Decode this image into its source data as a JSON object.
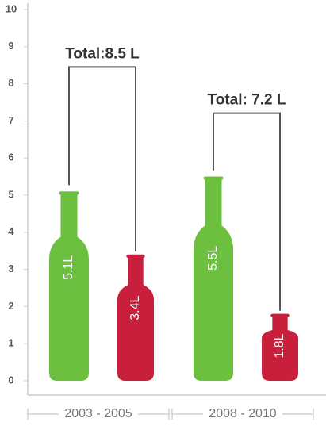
{
  "chart_data": {
    "type": "bar",
    "groups": [
      "2003 - 2005",
      "2008 - 2010"
    ],
    "values": [
      5.1,
      3.4,
      5.5,
      1.8
    ],
    "value_labels": [
      "5.1L",
      "3.4L",
      "5.5L",
      "1.8L"
    ],
    "colors": [
      "#6cbf3f",
      "#c8203c",
      "#6cbf3f",
      "#c8203c"
    ],
    "annotations": [
      "Total:8.5 L",
      "Total: 7.2 L"
    ],
    "ylim": [
      0,
      10
    ],
    "yticks": [
      0,
      1,
      2,
      3,
      4,
      5,
      6,
      7,
      8,
      9,
      10
    ]
  }
}
